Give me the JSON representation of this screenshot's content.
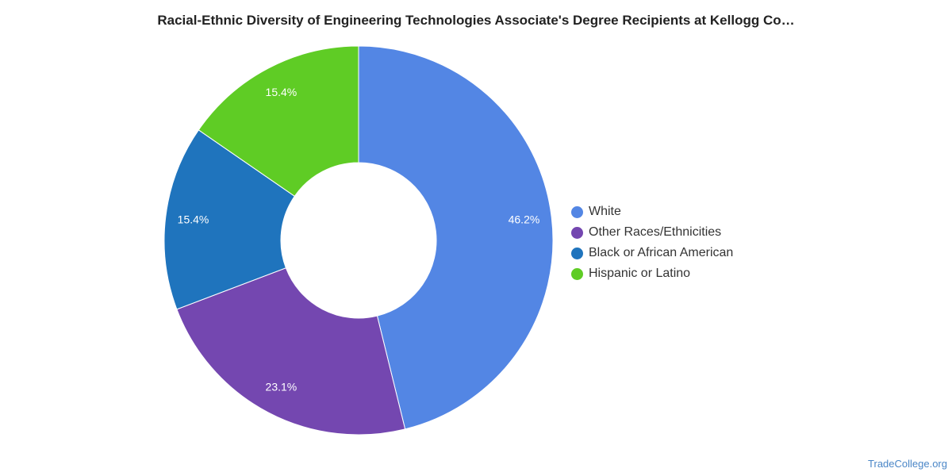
{
  "chart_data": {
    "type": "pie",
    "title": "Racial-Ethnic Diversity of Engineering Technologies Associate's Degree Recipients at Kellogg Co…",
    "donut": true,
    "slices": [
      {
        "name": "White",
        "value": 46.2,
        "label": "46.2%",
        "color": "#5386e4"
      },
      {
        "name": "Other Races/Ethnicities",
        "value": 23.1,
        "label": "23.1%",
        "color": "#7447b0"
      },
      {
        "name": "Black or African American",
        "value": 15.4,
        "label": "15.4%",
        "color": "#1f74bd"
      },
      {
        "name": "Hispanic or Latino",
        "value": 15.4,
        "label": "15.4%",
        "color": "#5fcc25"
      }
    ],
    "legend_position": "right"
  },
  "watermark": "TradeCollege.org"
}
